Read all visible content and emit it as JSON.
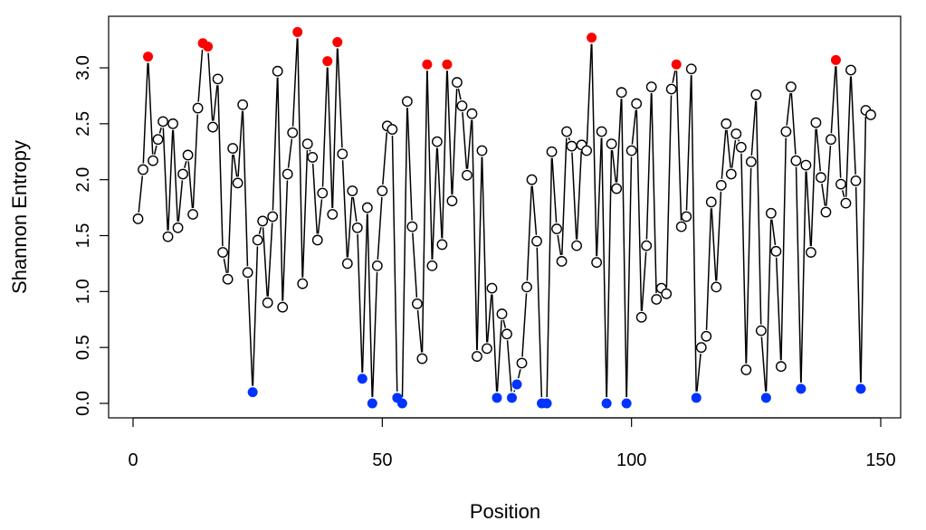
{
  "chart_data": {
    "type": "line",
    "title": "",
    "xlabel": "Position",
    "ylabel": "Shannon Entropy",
    "xlim": [
      0,
      150
    ],
    "ylim": [
      0,
      3.0
    ],
    "x_ticks": [
      "0",
      "50",
      "100",
      "150"
    ],
    "x_tick_values": [
      0,
      50,
      100,
      150
    ],
    "y_ticks": [
      "0.0",
      "0.5",
      "1.0",
      "1.5",
      "2.0",
      "2.5",
      "3.0"
    ],
    "y_tick_values": [
      0,
      0.5,
      1.0,
      1.5,
      2.0,
      2.5,
      3.0
    ],
    "grid": false,
    "colors": {
      "high": "#ff0000",
      "low": "#0033ff",
      "normal": "#000000"
    },
    "high_positions": [
      3,
      14,
      15,
      33,
      39,
      41,
      59,
      63,
      92,
      109,
      141
    ],
    "low_positions": [
      24,
      46,
      48,
      53,
      54,
      73,
      76,
      77,
      82,
      83,
      95,
      99,
      113,
      127,
      134,
      146
    ],
    "values": [
      1.65,
      2.09,
      3.1,
      2.17,
      2.36,
      2.52,
      1.49,
      2.5,
      1.57,
      2.05,
      2.22,
      1.69,
      2.64,
      3.22,
      3.19,
      2.47,
      2.9,
      1.35,
      1.11,
      2.28,
      1.97,
      2.67,
      1.17,
      0.1,
      1.46,
      1.63,
      0.9,
      1.67,
      2.97,
      0.86,
      2.05,
      2.42,
      3.32,
      1.07,
      2.32,
      2.2,
      1.46,
      1.88,
      3.06,
      1.69,
      3.23,
      2.23,
      1.25,
      1.9,
      1.57,
      0.22,
      1.75,
      0.0,
      1.23,
      1.9,
      2.48,
      2.45,
      0.05,
      0.0,
      2.7,
      1.58,
      0.89,
      0.4,
      3.03,
      1.23,
      2.34,
      1.42,
      3.03,
      1.81,
      2.87,
      2.66,
      2.04,
      2.59,
      0.42,
      2.26,
      0.49,
      1.03,
      0.05,
      0.8,
      0.62,
      0.05,
      0.17,
      0.36,
      1.04,
      2.0,
      1.45,
      0.0,
      0.0,
      2.25,
      1.56,
      1.27,
      2.43,
      2.3,
      1.41,
      2.31,
      2.26,
      3.27,
      1.26,
      2.43,
      0.0,
      2.32,
      1.92,
      2.78,
      0.0,
      2.26,
      2.68,
      0.77,
      1.41,
      2.83,
      0.93,
      1.03,
      0.98,
      2.81,
      3.03,
      1.58,
      1.67,
      2.99,
      0.05,
      0.5,
      0.6,
      1.8,
      1.04,
      1.95,
      2.5,
      2.05,
      2.41,
      2.29,
      0.3,
      2.16,
      2.76,
      0.65,
      0.05,
      1.7,
      1.36,
      0.33,
      2.43,
      2.83,
      2.17,
      0.13,
      2.13,
      1.35,
      2.51,
      2.02,
      1.71,
      2.36,
      3.07,
      1.96,
      1.79,
      2.98,
      1.99,
      0.13,
      2.62,
      2.58
    ]
  }
}
